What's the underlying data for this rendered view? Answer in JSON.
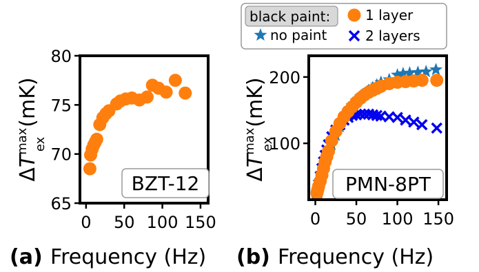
{
  "chart_data": [
    {
      "type": "scatter",
      "panel": "(a)",
      "xlabel": "Frequency (Hz)",
      "ylabel": "ΔT_ex^max (mK)",
      "xlim": [
        -8,
        160
      ],
      "ylim": [
        65,
        80
      ],
      "xticks": [
        0,
        50,
        100,
        150
      ],
      "yticks": [
        65,
        70,
        75,
        80
      ],
      "annotation": "BZT-12",
      "series": [
        {
          "color": "#ff7f0e",
          "marker": "circle",
          "points": [
            [
              5,
              68.5
            ],
            [
              6,
              69.9
            ],
            [
              8,
              70.5
            ],
            [
              10,
              70.9
            ],
            [
              12,
              71.2
            ],
            [
              14,
              71.5
            ],
            [
              18,
              73.0
            ],
            [
              22,
              73.7
            ],
            [
              26,
              74.1
            ],
            [
              30,
              74.4
            ],
            [
              40,
              75.1
            ],
            [
              45,
              75.4
            ],
            [
              52,
              75.6
            ],
            [
              60,
              75.7
            ],
            [
              70,
              75.5
            ],
            [
              80,
              75.8
            ],
            [
              87,
              77.0
            ],
            [
              95,
              76.7
            ],
            [
              105,
              76.3
            ],
            [
              117,
              77.5
            ],
            [
              130,
              76.2
            ]
          ]
        }
      ]
    },
    {
      "type": "scatter",
      "panel": "(b)",
      "xlabel": "Frequency (Hz)",
      "ylabel": "ΔT_ex^max (mK)",
      "xlim": [
        -8,
        160
      ],
      "ylim": [
        15,
        232
      ],
      "xticks": [
        0,
        50,
        100,
        150
      ],
      "yticks": [
        100,
        200
      ],
      "annotation": "PMN-8PT",
      "legend": {
        "title": "black paint:",
        "placement": "top",
        "entries": [
          "no paint",
          "1 layer",
          "2 layers"
        ]
      },
      "series": [
        {
          "name": "no paint",
          "color": "#1f77b4",
          "marker": "star",
          "points": [
            [
              2,
              26
            ],
            [
              4,
              33
            ],
            [
              6,
              40
            ],
            [
              8,
              48
            ],
            [
              10,
              58
            ],
            [
              12,
              67
            ],
            [
              14,
              76
            ],
            [
              16,
              84
            ],
            [
              20,
              98
            ],
            [
              25,
              112
            ],
            [
              30,
              125
            ],
            [
              35,
              138
            ],
            [
              40,
              148
            ],
            [
              45,
              157
            ],
            [
              50,
              164
            ],
            [
              55,
              170
            ],
            [
              60,
              175
            ],
            [
              65,
              180
            ],
            [
              70,
              184
            ],
            [
              75,
              188
            ],
            [
              80,
              192
            ],
            [
              90,
              196
            ],
            [
              100,
              203
            ],
            [
              107,
              205
            ],
            [
              115,
              206
            ],
            [
              125,
              207
            ],
            [
              135,
              208
            ],
            [
              147,
              211
            ]
          ]
        },
        {
          "name": "1 layer",
          "color": "#ff7f0e",
          "marker": "circle",
          "points": [
            [
              2,
              25
            ],
            [
              3,
              30
            ],
            [
              4,
              35
            ],
            [
              6,
              43
            ],
            [
              8,
              52
            ],
            [
              10,
              62
            ],
            [
              12,
              72
            ],
            [
              14,
              80
            ],
            [
              16,
              88
            ],
            [
              20,
              104
            ],
            [
              25,
              118
            ],
            [
              30,
              130
            ],
            [
              35,
              140
            ],
            [
              40,
              148
            ],
            [
              45,
              155
            ],
            [
              50,
              162
            ],
            [
              55,
              168
            ],
            [
              60,
              173
            ],
            [
              65,
              177
            ],
            [
              70,
              180
            ],
            [
              75,
              183
            ],
            [
              80,
              186
            ],
            [
              90,
              190
            ],
            [
              100,
              192
            ],
            [
              110,
              193
            ],
            [
              120,
              194
            ],
            [
              130,
              195
            ],
            [
              148,
              195
            ]
          ]
        },
        {
          "name": "2 layers",
          "color": "#0000ee",
          "marker": "x",
          "points": [
            [
              2,
              25
            ],
            [
              4,
              38
            ],
            [
              6,
              50
            ],
            [
              8,
              62
            ],
            [
              10,
              72
            ],
            [
              12,
              82
            ],
            [
              14,
              90
            ],
            [
              16,
              98
            ],
            [
              20,
              110
            ],
            [
              25,
              120
            ],
            [
              30,
              128
            ],
            [
              35,
              135
            ],
            [
              40,
              139
            ],
            [
              45,
              142
            ],
            [
              50,
              143
            ],
            [
              55,
              144
            ],
            [
              60,
              144
            ],
            [
              65,
              144
            ],
            [
              70,
              143
            ],
            [
              75,
              142
            ],
            [
              80,
              141
            ],
            [
              90,
              140
            ],
            [
              100,
              139
            ],
            [
              110,
              135
            ],
            [
              120,
              132
            ],
            [
              130,
              128
            ],
            [
              148,
              123
            ]
          ]
        }
      ]
    }
  ]
}
